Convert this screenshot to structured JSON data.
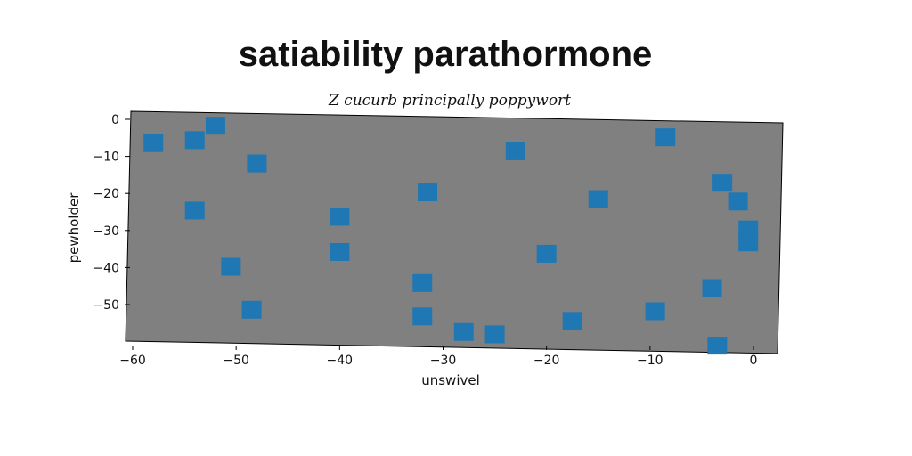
{
  "chart_data": {
    "type": "scatter",
    "title": "satiability parathormone",
    "subtitle": "Z cucurb principally poppywort",
    "xlabel": "unswivel",
    "ylabel": "pewholder",
    "xlim": [
      -61,
      3
    ],
    "ylim": [
      -60,
      2
    ],
    "xticks": [
      -60,
      -50,
      -40,
      -30,
      -20,
      -10,
      0
    ],
    "yticks": [
      0,
      -10,
      -20,
      -30,
      -40,
      -50
    ],
    "xtick_labels": [
      "−60",
      "−50",
      "−40",
      "−30",
      "−20",
      "−10",
      "0"
    ],
    "ytick_labels": [
      "0",
      "−10",
      "−20",
      "−30",
      "−40",
      "−50"
    ],
    "grid": false,
    "marker": "square",
    "colors": {
      "marker": "#1f77b4",
      "background": "#808080",
      "axes": "#000000"
    },
    "series": [
      {
        "x": [
          -58,
          -54,
          -52,
          -48,
          -54,
          -50.5,
          -48.5,
          -40,
          -40,
          -31.5,
          -32,
          -32,
          -28,
          -25,
          -23,
          -20,
          -17.5,
          -15,
          -9.5,
          -8.5,
          -4,
          -3.5,
          -3,
          -1.5,
          -0.5,
          -0.5
        ],
        "y": [
          -7,
          -6,
          -2,
          -12,
          -25,
          -40,
          -51.5,
          -26,
          -35.5,
          -19,
          -43.5,
          -52.5,
          -56.5,
          -57,
          -7.5,
          -35,
          -53,
          -20,
          -50,
          -3,
          -43.5,
          -59,
          -15,
          -20,
          -27.5,
          -31
        ]
      }
    ]
  }
}
